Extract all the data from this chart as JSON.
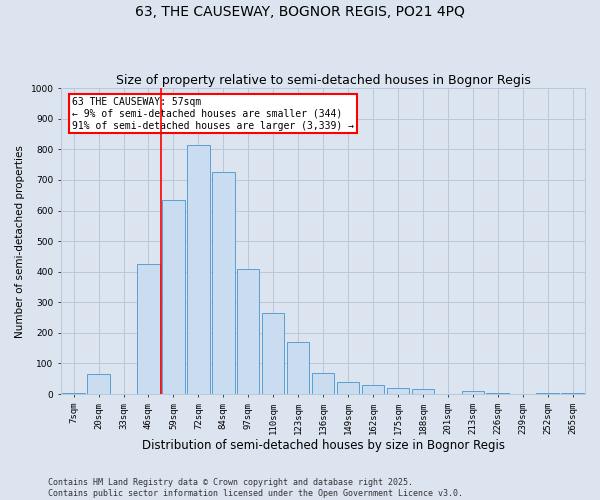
{
  "title": "63, THE CAUSEWAY, BOGNOR REGIS, PO21 4PQ",
  "subtitle": "Size of property relative to semi-detached houses in Bognor Regis",
  "xlabel": "Distribution of semi-detached houses by size in Bognor Regis",
  "ylabel": "Number of semi-detached properties",
  "categories": [
    "7sqm",
    "20sqm",
    "33sqm",
    "46sqm",
    "59sqm",
    "72sqm",
    "84sqm",
    "97sqm",
    "110sqm",
    "123sqm",
    "136sqm",
    "149sqm",
    "162sqm",
    "175sqm",
    "188sqm",
    "201sqm",
    "213sqm",
    "226sqm",
    "239sqm",
    "252sqm",
    "265sqm"
  ],
  "values": [
    5,
    65,
    0,
    425,
    635,
    815,
    725,
    410,
    265,
    170,
    70,
    40,
    28,
    20,
    18,
    0,
    10,
    5,
    0,
    5,
    2
  ],
  "bar_color": "#c9dcf0",
  "bar_edge_color": "#5a9fd4",
  "grid_color": "#b8c8dc",
  "background_color": "#dce4f0",
  "vline_color": "red",
  "vline_x_index": 4,
  "annotation_text": "63 THE CAUSEWAY: 57sqm\n← 9% of semi-detached houses are smaller (344)\n91% of semi-detached houses are larger (3,339) →",
  "annotation_box_color": "white",
  "annotation_box_edge": "red",
  "ylim": [
    0,
    1000
  ],
  "yticks": [
    0,
    100,
    200,
    300,
    400,
    500,
    600,
    700,
    800,
    900,
    1000
  ],
  "footer": "Contains HM Land Registry data © Crown copyright and database right 2025.\nContains public sector information licensed under the Open Government Licence v3.0.",
  "title_fontsize": 10,
  "subtitle_fontsize": 9,
  "xlabel_fontsize": 8.5,
  "ylabel_fontsize": 7.5,
  "tick_fontsize": 6.5,
  "annotation_fontsize": 7,
  "footer_fontsize": 6
}
